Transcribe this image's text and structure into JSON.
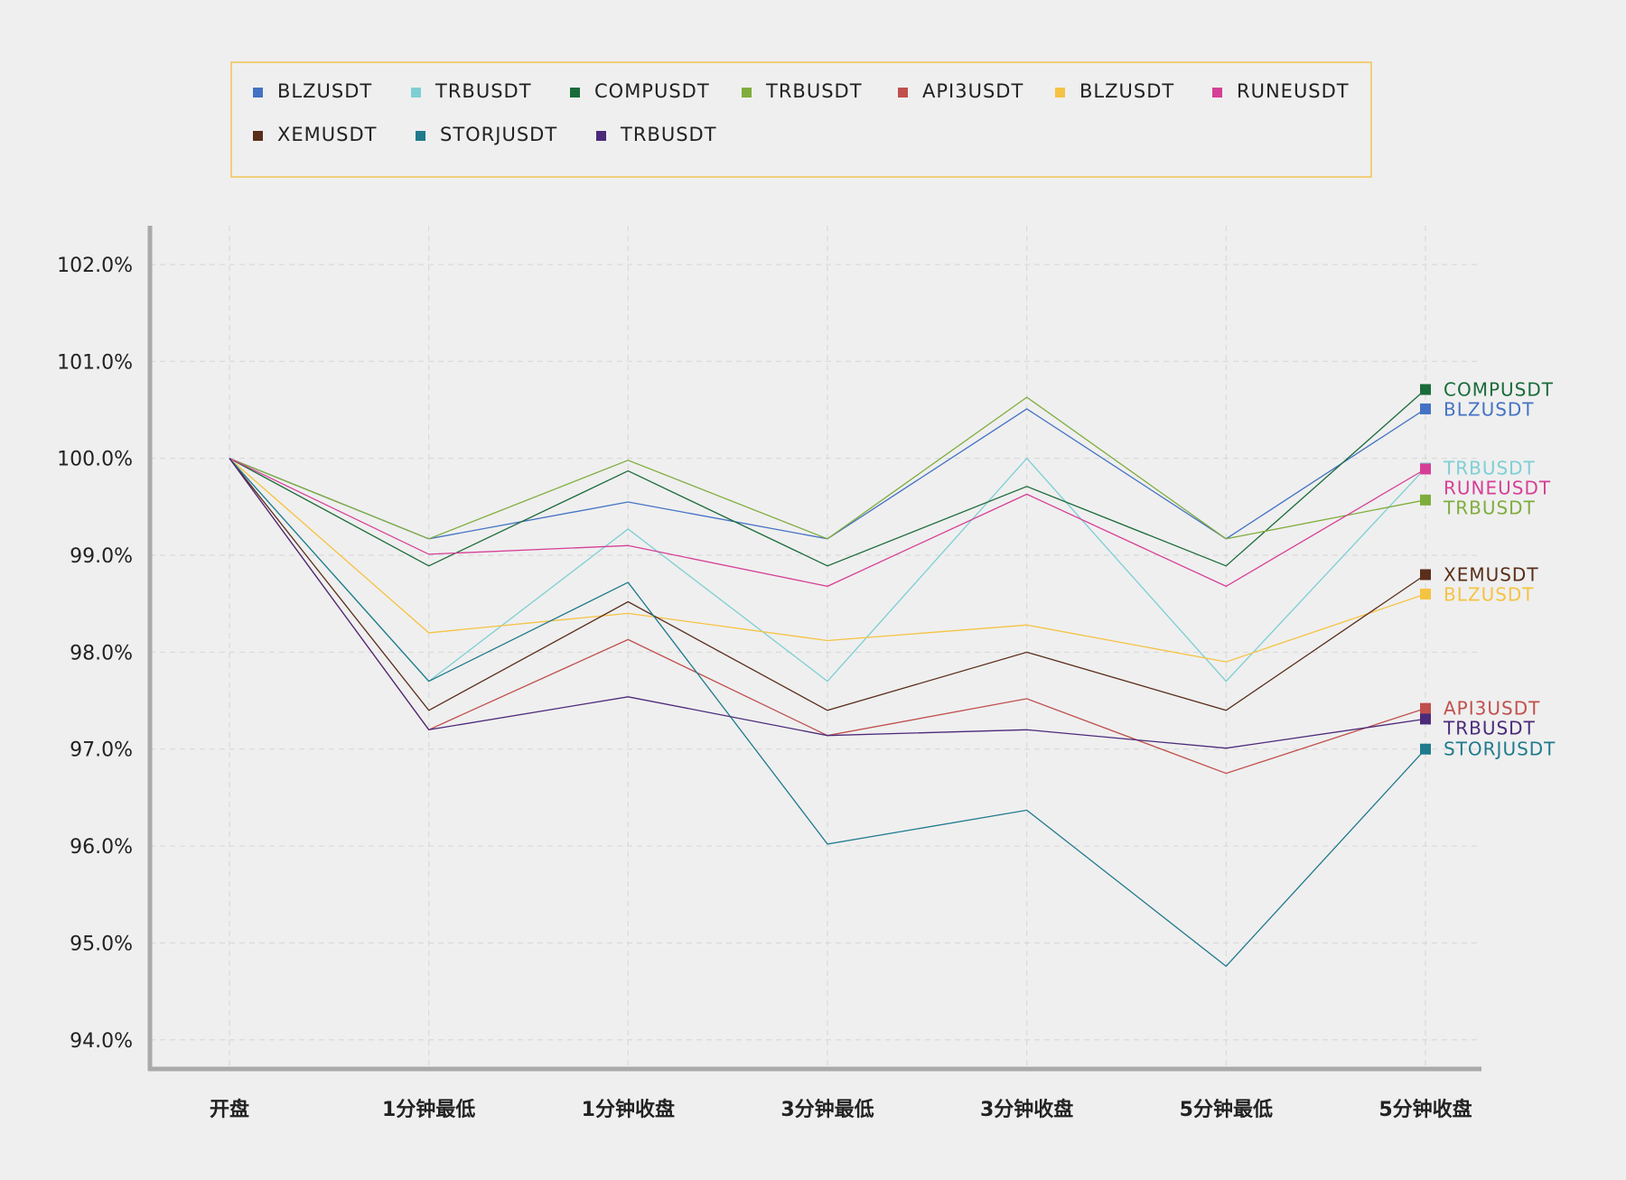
{
  "chart_data": {
    "type": "line",
    "title": "",
    "xlabel": "",
    "ylabel": "",
    "categories": [
      "开盘",
      "1分钟最低",
      "1分钟收盘",
      "3分钟最低",
      "3分钟收盘",
      "5分钟最低",
      "5分钟收盘"
    ],
    "y_ticks": [
      "94.0%",
      "95.0%",
      "96.0%",
      "97.0%",
      "98.0%",
      "99.0%",
      "100.0%",
      "101.0%",
      "102.0%"
    ],
    "ylim": [
      93.7,
      102.4
    ],
    "grid": true,
    "legend_position": "top",
    "series": [
      {
        "name": "BLZUSDT",
        "color": "#4472c4",
        "values": [
          100.0,
          99.17,
          99.55,
          99.17,
          100.51,
          99.17,
          100.51
        ]
      },
      {
        "name": "TRBUSDT",
        "color": "#7ecfd4",
        "values": [
          100.0,
          97.7,
          99.27,
          97.7,
          100.0,
          97.7,
          99.9
        ]
      },
      {
        "name": "COMPUSDT",
        "color": "#1a6b3a",
        "values": [
          100.0,
          98.89,
          99.87,
          98.89,
          99.71,
          98.89,
          100.71
        ]
      },
      {
        "name": "TRBUSDT",
        "color": "#7fad3c",
        "values": [
          100.0,
          99.17,
          99.98,
          99.17,
          100.63,
          99.17,
          99.57
        ]
      },
      {
        "name": "API3USDT",
        "color": "#c0504d",
        "values": [
          100.0,
          97.2,
          98.13,
          97.14,
          97.52,
          96.75,
          97.42
        ]
      },
      {
        "name": "BLZUSDT",
        "color": "#f5c342",
        "values": [
          100.0,
          98.2,
          98.4,
          98.12,
          98.28,
          97.9,
          98.6
        ]
      },
      {
        "name": "RUNEUSDT",
        "color": "#d63f96",
        "values": [
          100.0,
          99.01,
          99.1,
          98.68,
          99.63,
          98.68,
          99.89
        ]
      },
      {
        "name": "XEMUSDT",
        "color": "#5a2e1a",
        "values": [
          100.0,
          97.4,
          98.52,
          97.4,
          98.0,
          97.4,
          98.8
        ]
      },
      {
        "name": "STORJUSDT",
        "color": "#1f7a8c",
        "values": [
          100.0,
          97.7,
          98.72,
          96.02,
          96.37,
          94.76,
          97.0
        ]
      },
      {
        "name": "TRBUSDT",
        "color": "#4b2a7a",
        "values": [
          100.0,
          97.2,
          97.54,
          97.14,
          97.2,
          97.01,
          97.31
        ]
      }
    ]
  }
}
